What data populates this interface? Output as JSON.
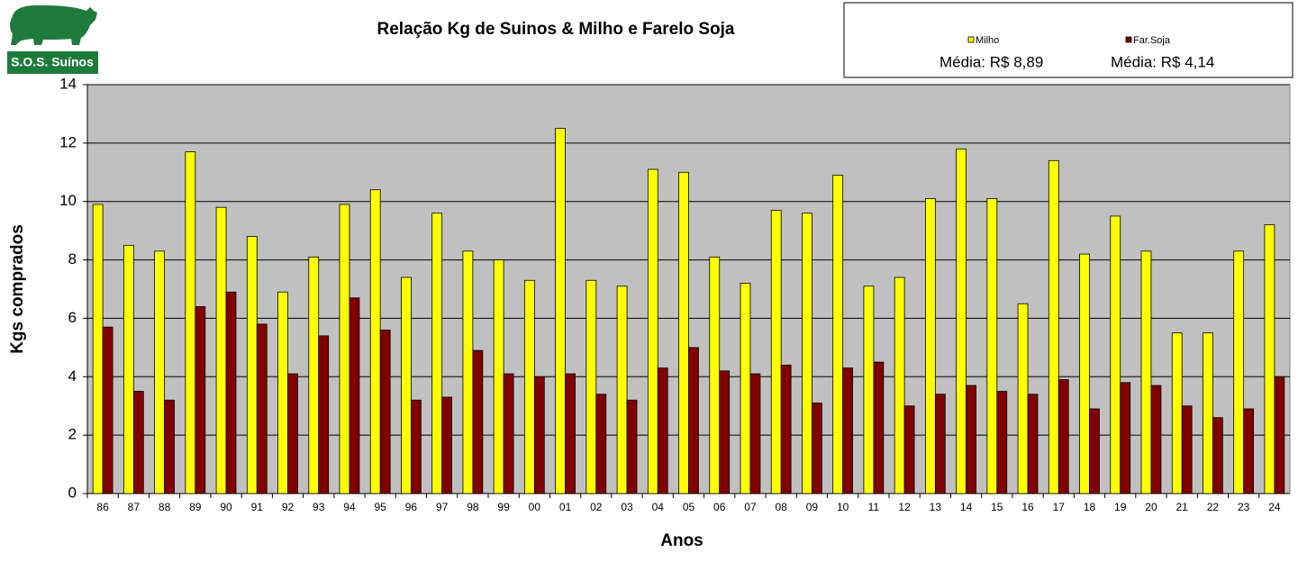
{
  "logo": {
    "text": "S.O.S. Suínos"
  },
  "chart_data": {
    "type": "bar",
    "title": "Relação Kg de Suinos & Milho e Farelo Soja",
    "x_label": "Anos",
    "y_label": "Kgs comprados",
    "categories": [
      "86",
      "87",
      "88",
      "89",
      "90",
      "91",
      "92",
      "93",
      "94",
      "95",
      "96",
      "97",
      "98",
      "99",
      "00",
      "01",
      "02",
      "03",
      "04",
      "05",
      "06",
      "07",
      "08",
      "09",
      "10",
      "11",
      "12",
      "13",
      "14",
      "15",
      "16",
      "17",
      "18",
      "19",
      "20",
      "21",
      "22",
      "23",
      "24"
    ],
    "series": [
      {
        "name": "Milho",
        "color": "#ffff00",
        "values": [
          9.9,
          8.5,
          8.3,
          11.7,
          9.8,
          8.8,
          6.9,
          8.1,
          9.9,
          10.4,
          7.4,
          9.6,
          8.3,
          8.0,
          7.3,
          12.5,
          7.3,
          7.1,
          11.1,
          11.0,
          8.1,
          7.2,
          9.7,
          9.6,
          10.9,
          7.1,
          7.4,
          10.1,
          11.8,
          10.1,
          6.5,
          11.4,
          8.2,
          9.5,
          8.3,
          5.5,
          5.5,
          8.3,
          9.2
        ]
      },
      {
        "name": "Far.Soja",
        "color": "#800000",
        "values": [
          5.7,
          3.5,
          3.2,
          6.4,
          6.9,
          5.8,
          4.1,
          5.4,
          6.7,
          5.6,
          3.2,
          3.3,
          4.9,
          4.1,
          4.0,
          4.1,
          3.4,
          3.2,
          4.3,
          5.0,
          4.2,
          4.1,
          4.4,
          3.1,
          4.3,
          4.5,
          3.0,
          3.4,
          3.7,
          3.5,
          3.4,
          3.9,
          2.9,
          3.8,
          3.7,
          3.0,
          2.6,
          2.9,
          4.0
        ]
      }
    ],
    "annotations": [
      "Média: R$ 8,89",
      "Média: R$ 4,14"
    ],
    "ylim": [
      0,
      14
    ],
    "yticks": [
      0,
      2,
      4,
      6,
      8,
      10,
      12,
      14
    ],
    "grid": true,
    "plot_background": "#c0c0c0"
  }
}
